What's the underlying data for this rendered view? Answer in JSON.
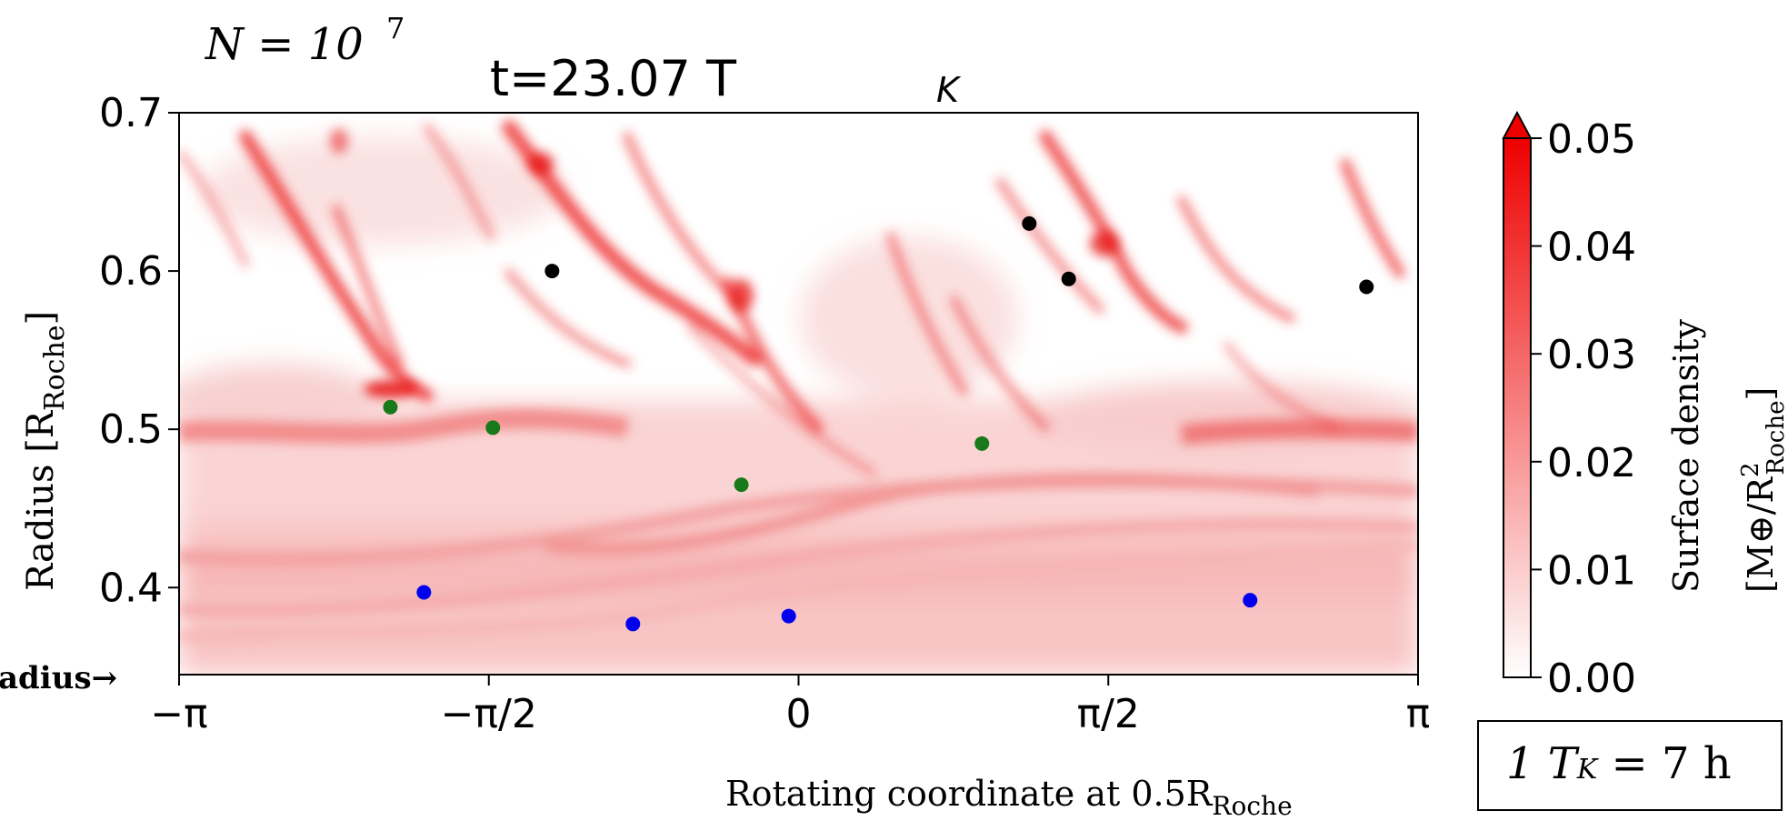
{
  "annotations": {
    "n_label": "N = 10",
    "n_exponent": "7",
    "left_fragment": "adius→"
  },
  "time_box": {
    "text": "1 T",
    "sub": "K",
    "rest": " = 7 h"
  },
  "chart_data": {
    "type": "heatmap",
    "title": "t=23.07 T",
    "title_sub": "K",
    "xlabel": "Rotating coordinate at 0.5R",
    "xlabel_sub": "Roche",
    "ylabel": "Radius [R",
    "ylabel_sub": "Roche",
    "ylabel_end": "]",
    "x_ticks": [
      {
        "value": -3.14159,
        "label": "−π"
      },
      {
        "value": -1.5708,
        "label": "−π/2"
      },
      {
        "value": 0,
        "label": "0"
      },
      {
        "value": 1.5708,
        "label": "π/2"
      },
      {
        "value": 3.14159,
        "label": "π"
      }
    ],
    "y_ticks": [
      0.4,
      0.5,
      0.6,
      0.7
    ],
    "xlim": [
      -3.14159,
      3.14159
    ],
    "ylim": [
      0.345,
      0.7
    ],
    "colorbar": {
      "label": "Surface density",
      "unit_label": "[M⊕/R",
      "unit_sub": "Roche",
      "unit_sup": "2",
      "unit_end": "]",
      "ticks": [
        "0.00",
        "0.01",
        "0.02",
        "0.03",
        "0.04",
        "0.05"
      ],
      "range": [
        0,
        0.05
      ],
      "extend": "max",
      "color_low": "#ffffff",
      "color_high": "#ee0000"
    },
    "series": [
      {
        "color": "#000000",
        "points": [
          [
            -1.25,
            0.6
          ],
          [
            1.17,
            0.63
          ],
          [
            1.37,
            0.595
          ],
          [
            2.88,
            0.59
          ]
        ]
      },
      {
        "color": "#1a7a1a",
        "points": [
          [
            -2.07,
            0.514
          ],
          [
            -1.55,
            0.501
          ],
          [
            -0.29,
            0.465
          ],
          [
            0.93,
            0.491
          ]
        ]
      },
      {
        "color": "#0000ee",
        "points": [
          [
            -1.9,
            0.397
          ],
          [
            -0.84,
            0.377
          ],
          [
            -0.05,
            0.382
          ],
          [
            2.29,
            0.392
          ]
        ]
      }
    ]
  }
}
